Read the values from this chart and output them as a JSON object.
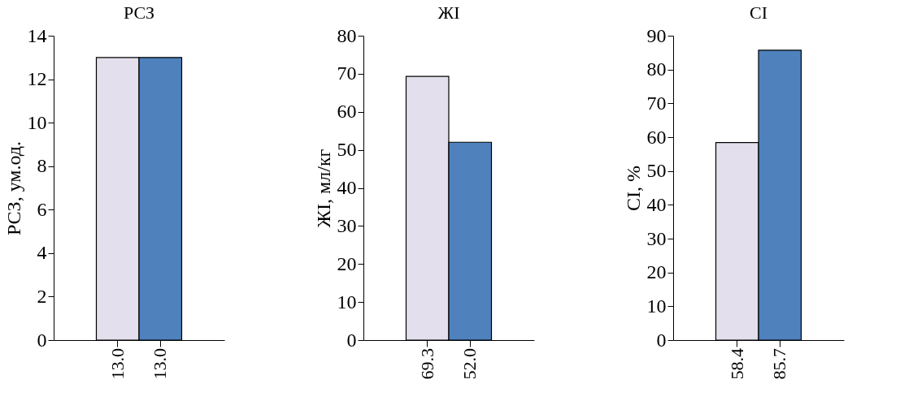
{
  "chart_data": [
    {
      "type": "bar",
      "title": "РСЗ",
      "ylabel": "РСЗ, ум.од.",
      "categories": [
        null,
        null
      ],
      "values": [
        13.0,
        13.0
      ],
      "colors": [
        "#e4dfec",
        "#4f81bd"
      ],
      "value_labels": [
        "13.0",
        "13.0"
      ],
      "ylim": [
        0,
        14
      ],
      "yticks": [
        0,
        2,
        4,
        6,
        8,
        10,
        12,
        14
      ],
      "tick_labels": "y",
      "grid": false
    },
    {
      "type": "bar",
      "title": "ЖІ",
      "ylabel": "ЖІ, мл/кг",
      "categories": [
        null,
        null
      ],
      "values": [
        69.3,
        52.0
      ],
      "colors": [
        "#e4dfec",
        "#4f81bd"
      ],
      "value_labels": [
        "69.3",
        "52.0"
      ],
      "ylim": [
        0,
        80
      ],
      "yticks": [
        0,
        10,
        20,
        30,
        40,
        50,
        60,
        70,
        80
      ],
      "tick_labels": "y",
      "grid": false
    },
    {
      "type": "bar",
      "title": "СІ",
      "ylabel": "СІ, %",
      "categories": [
        null,
        null
      ],
      "values": [
        58.4,
        85.7
      ],
      "colors": [
        "#e4dfec",
        "#4f81bd"
      ],
      "value_labels": [
        "58.4",
        "85.7"
      ],
      "ylim": [
        0,
        90
      ],
      "yticks": [
        0,
        10,
        20,
        30,
        40,
        50,
        60,
        70,
        80,
        90
      ],
      "tick_labels": "y",
      "grid": false
    }
  ]
}
